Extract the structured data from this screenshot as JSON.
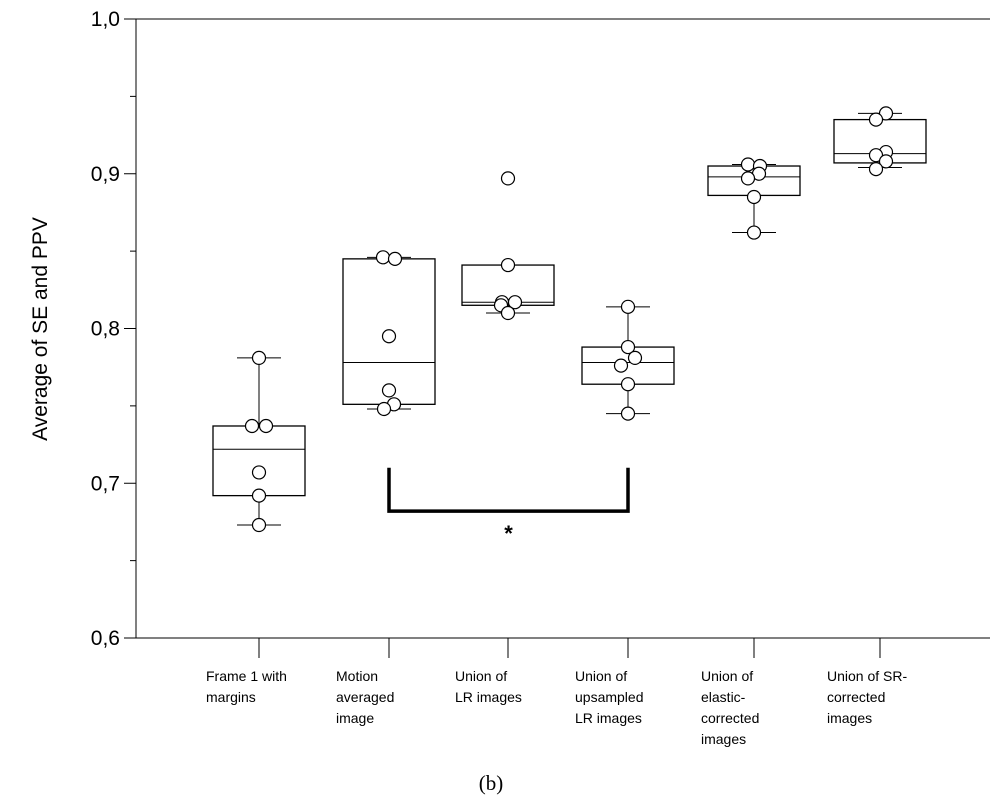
{
  "chart_data": {
    "type": "box",
    "ylabel": "Average of SE and PPV",
    "xlabel": "",
    "ylim": [
      0.6,
      1.0
    ],
    "yticks": [
      {
        "value": 0.6,
        "label": "0,6"
      },
      {
        "value": 0.7,
        "label": "0,7"
      },
      {
        "value": 0.8,
        "label": "0,8"
      },
      {
        "value": 0.9,
        "label": "0,9"
      },
      {
        "value": 1.0,
        "label": "1,0"
      }
    ],
    "yminor": [
      0.65,
      0.75,
      0.85,
      0.95
    ],
    "categories": [
      [
        "Frame 1 with",
        "margins"
      ],
      [
        "Motion",
        "averaged",
        "image"
      ],
      [
        "Union of",
        "LR images"
      ],
      [
        "Union of",
        "upsampled",
        "LR images"
      ],
      [
        "Union of",
        "elastic-",
        "corrected",
        "images"
      ],
      [
        "Union of SR-",
        "corrected",
        "images"
      ]
    ],
    "boxes": [
      {
        "whisker_low": 0.673,
        "q1": 0.692,
        "median": 0.722,
        "q3": 0.737,
        "whisker_high": 0.781
      },
      {
        "whisker_low": 0.748,
        "q1": 0.751,
        "median": 0.778,
        "q3": 0.845,
        "whisker_high": 0.846
      },
      {
        "whisker_low": 0.81,
        "q1": 0.815,
        "median": 0.817,
        "q3": 0.841,
        "whisker_high": null
      },
      {
        "whisker_low": 0.745,
        "q1": 0.764,
        "median": 0.778,
        "q3": 0.788,
        "whisker_high": 0.814
      },
      {
        "whisker_low": 0.862,
        "q1": 0.886,
        "median": 0.898,
        "q3": 0.905,
        "whisker_high": 0.906
      },
      {
        "whisker_low": 0.904,
        "q1": 0.907,
        "median": 0.913,
        "q3": 0.935,
        "whisker_high": 0.939
      }
    ],
    "points": [
      [
        0.781,
        0.737,
        0.737,
        0.707,
        0.692,
        0.673
      ],
      [
        0.846,
        0.845,
        0.795,
        0.76,
        0.751,
        0.748
      ],
      [
        0.897,
        0.841,
        0.817,
        0.817,
        0.815,
        0.81
      ],
      [
        0.814,
        0.788,
        0.781,
        0.776,
        0.764,
        0.745
      ],
      [
        0.906,
        0.905,
        0.9,
        0.897,
        0.885,
        0.862
      ],
      [
        0.939,
        0.935,
        0.914,
        0.912,
        0.908,
        0.903
      ]
    ],
    "point_offsets": [
      [
        0,
        -7,
        7,
        0,
        0,
        0
      ],
      [
        -6,
        6,
        0,
        0,
        5,
        -5
      ],
      [
        0,
        0,
        -6,
        7,
        -7,
        0
      ],
      [
        0,
        0,
        7,
        -7,
        0,
        0
      ],
      [
        -6,
        6,
        5,
        -6,
        0,
        0
      ],
      [
        6,
        -4,
        6,
        -4,
        6,
        -4
      ]
    ],
    "significance": {
      "from": 1,
      "to": 3,
      "y_top": 0.71,
      "y_bar": 0.682,
      "label": "*"
    },
    "grid": false,
    "legend": "none"
  },
  "caption": "(b)"
}
